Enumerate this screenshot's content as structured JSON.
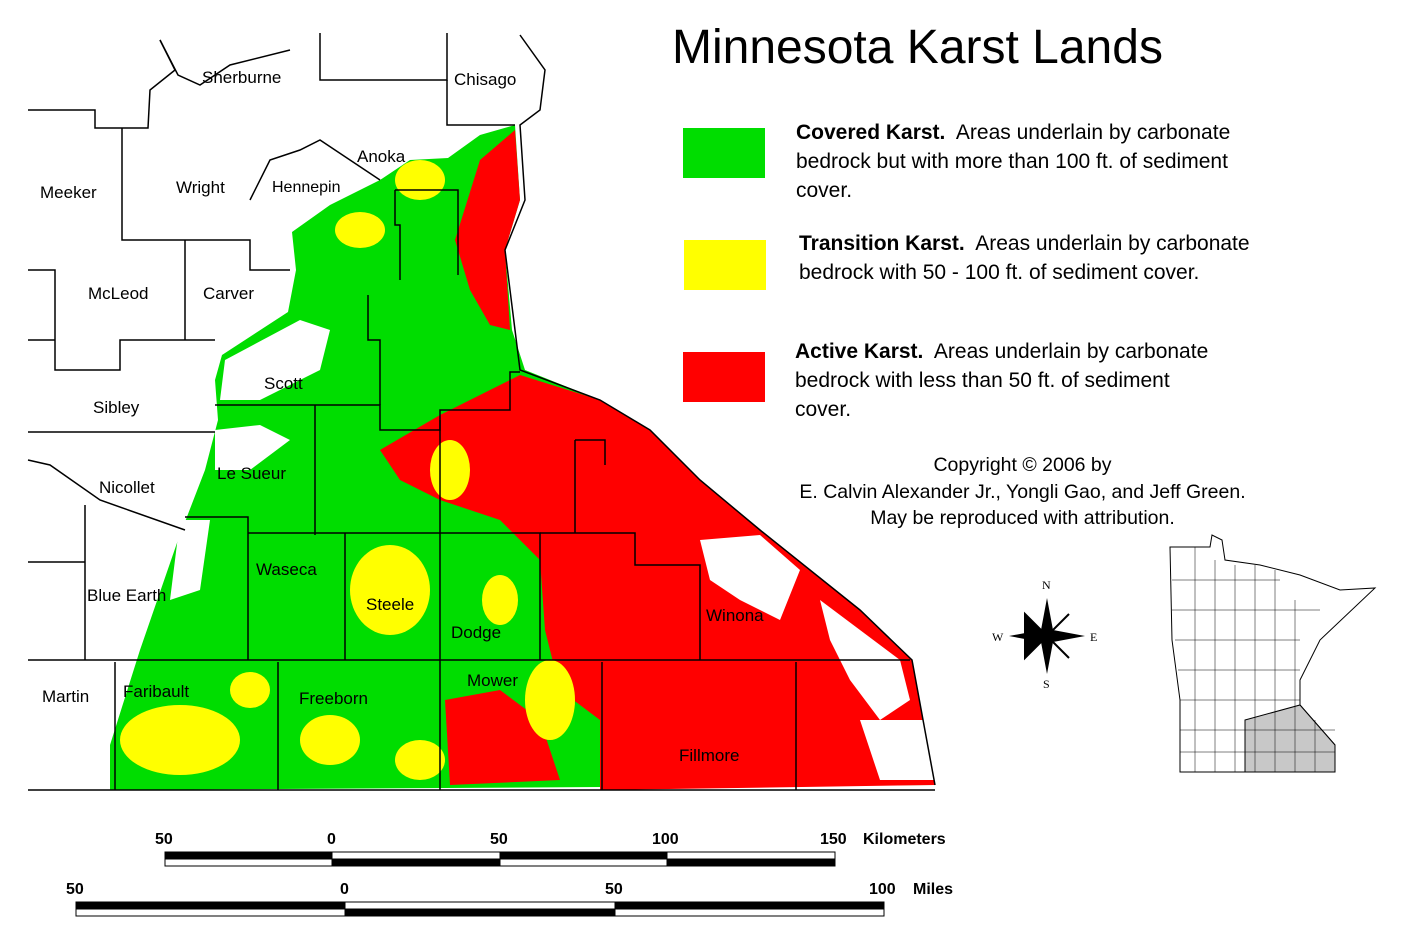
{
  "title": "Minnesota Karst Lands",
  "legend": [
    {
      "name": "Covered Karst.",
      "desc": "Areas underlain by carbonate bedrock but with more than 100 ft. of sediment cover.",
      "color": "#00dd00"
    },
    {
      "name": "Transition Karst.",
      "desc": "Areas underlain by carbonate bedrock with 50 - 100 ft. of sediment cover.",
      "color": "#ffff00"
    },
    {
      "name": "Active Karst.",
      "desc": "Areas underlain by carbonate bedrock with less than 50 ft. of sediment cover.",
      "color": "#ff0000"
    }
  ],
  "copyright": [
    "Copyright © 2006 by",
    "E. Calvin Alexander Jr., Yongli Gao, and Jeff Green.",
    "May be reproduced with attribution."
  ],
  "counties": [
    "Sherburne",
    "Chisago",
    "Anoka",
    "Meeker",
    "Wright",
    "Hennepin",
    "McLeod",
    "Carver",
    "Scott",
    "Sibley",
    "Le Sueur",
    "Nicollet",
    "Waseca",
    "Steele",
    "Dodge",
    "Blue Earth",
    "Winona",
    "Martin",
    "Faribault",
    "Freeborn",
    "Mower",
    "Fillmore"
  ],
  "compass": {
    "n": "N",
    "s": "S",
    "e": "E",
    "w": "W"
  },
  "scale_km": {
    "ticks": [
      "50",
      "0",
      "50",
      "100",
      "150"
    ],
    "unit": "Kilometers"
  },
  "scale_mi": {
    "ticks": [
      "50",
      "0",
      "50",
      "100"
    ],
    "unit": "Miles"
  }
}
